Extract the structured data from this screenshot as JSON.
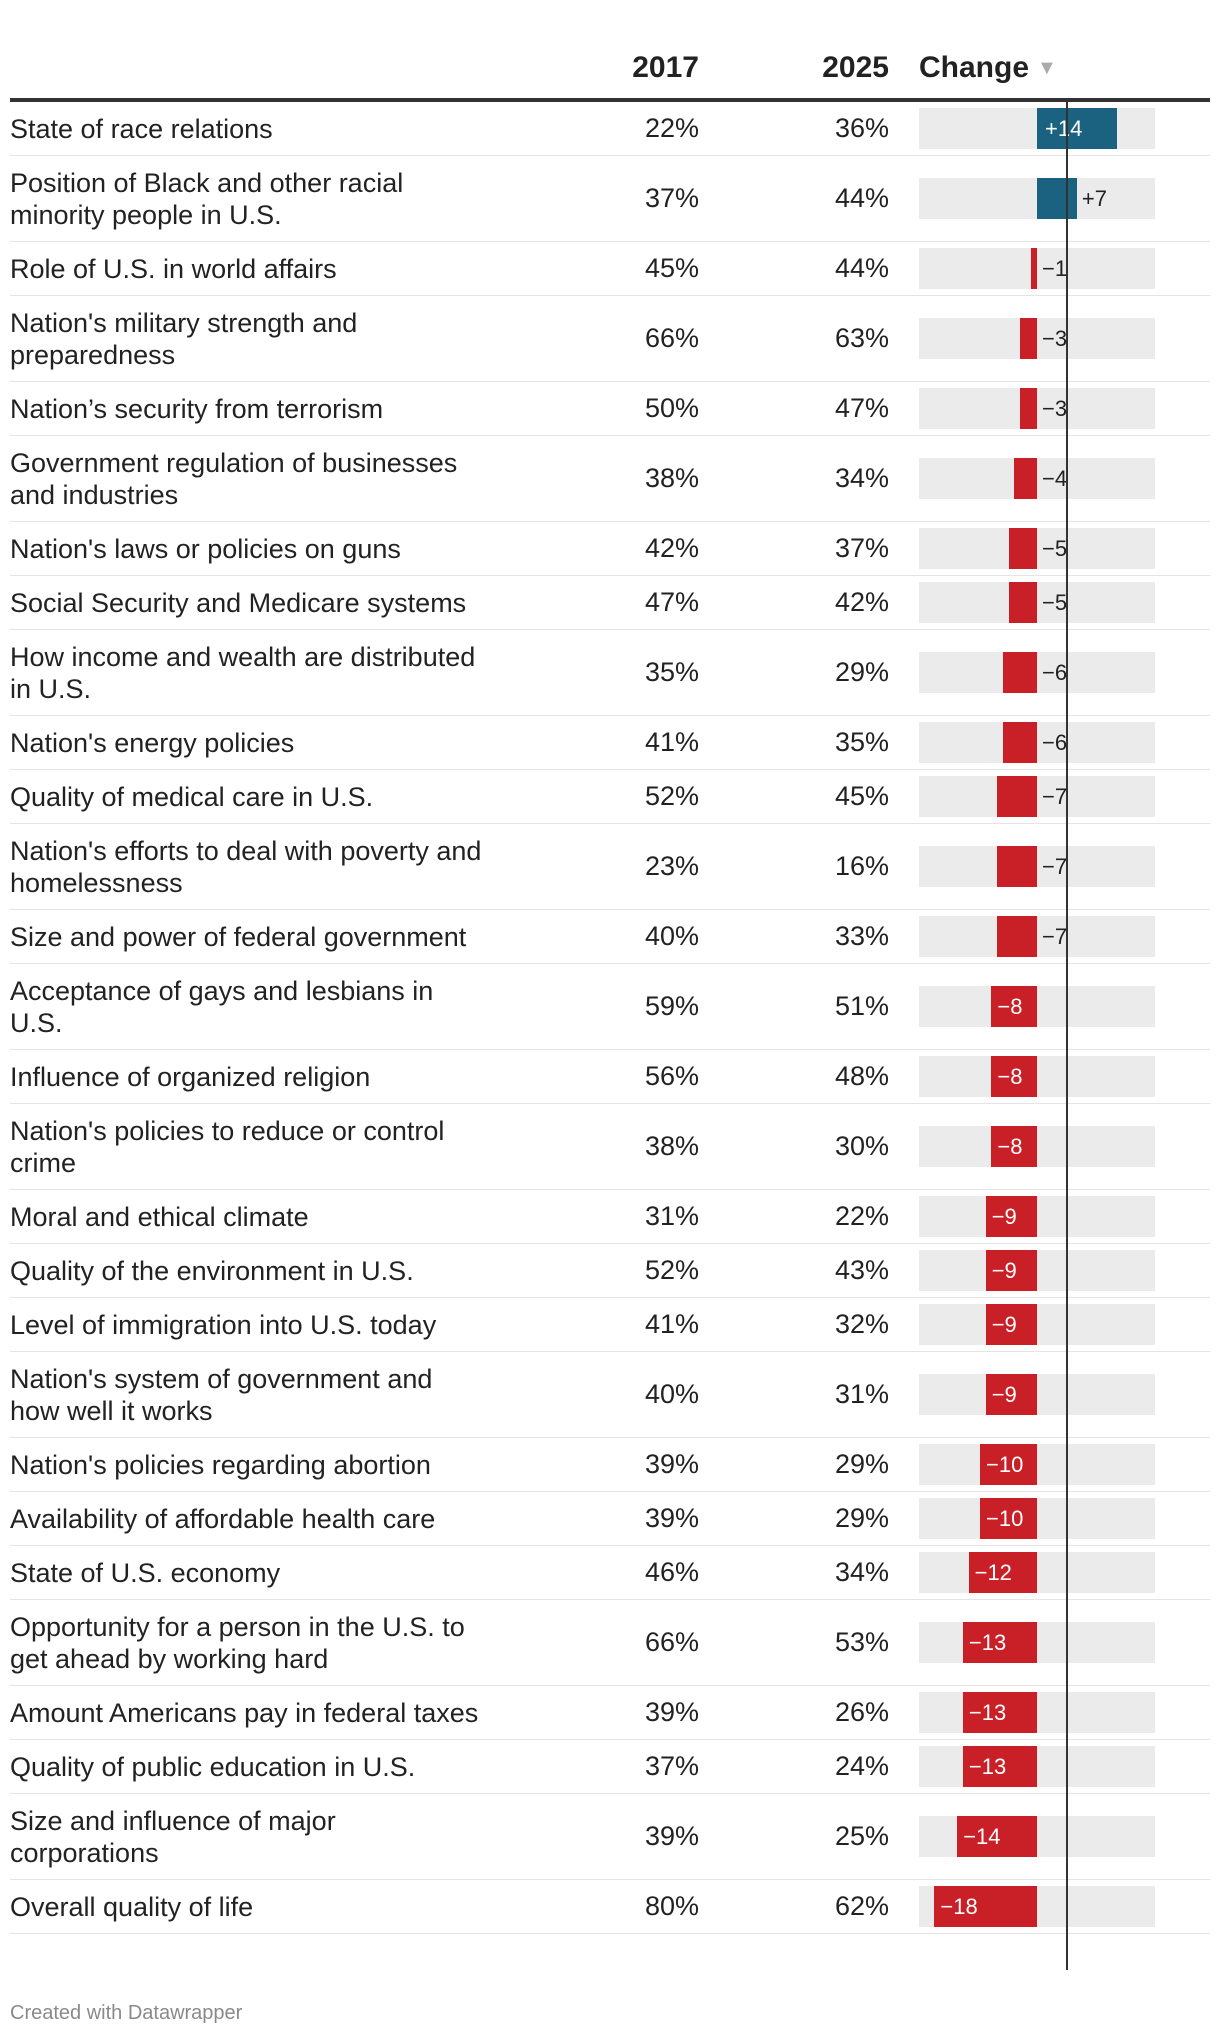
{
  "chart_data": {
    "type": "table",
    "columns": [
      "",
      "2017",
      "2025",
      "Change"
    ],
    "change_axis_range": [
      -22,
      22
    ],
    "colors": {
      "positive": "#1b6280",
      "negative": "#c91f26",
      "track": "#ebebeb"
    },
    "rows": [
      {
        "label": "State of race relations",
        "y2017": "22%",
        "y2025": "36%",
        "change": 14,
        "change_label": "+14"
      },
      {
        "label": "Position of Black and other racial minority people in U.S.",
        "y2017": "37%",
        "y2025": "44%",
        "change": 7,
        "change_label": "+7"
      },
      {
        "label": "Role of U.S. in world affairs",
        "y2017": "45%",
        "y2025": "44%",
        "change": -1,
        "change_label": "−1"
      },
      {
        "label": "Nation's military strength and preparedness",
        "y2017": "66%",
        "y2025": "63%",
        "change": -3,
        "change_label": "−3"
      },
      {
        "label": "Nation’s security from terrorism",
        "y2017": "50%",
        "y2025": "47%",
        "change": -3,
        "change_label": "−3"
      },
      {
        "label": "Government regulation of businesses and industries",
        "y2017": "38%",
        "y2025": "34%",
        "change": -4,
        "change_label": "−4"
      },
      {
        "label": "Nation's laws or policies on guns",
        "y2017": "42%",
        "y2025": "37%",
        "change": -5,
        "change_label": "−5"
      },
      {
        "label": "Social Security and Medicare systems",
        "y2017": "47%",
        "y2025": "42%",
        "change": -5,
        "change_label": "−5"
      },
      {
        "label": "How income and wealth are distributed in U.S.",
        "y2017": "35%",
        "y2025": "29%",
        "change": -6,
        "change_label": "−6"
      },
      {
        "label": "Nation's energy policies",
        "y2017": "41%",
        "y2025": "35%",
        "change": -6,
        "change_label": "−6"
      },
      {
        "label": "Quality of medical care in U.S.",
        "y2017": "52%",
        "y2025": "45%",
        "change": -7,
        "change_label": "−7"
      },
      {
        "label": "Nation's efforts to deal with poverty and homelessness",
        "y2017": "23%",
        "y2025": "16%",
        "change": -7,
        "change_label": "−7"
      },
      {
        "label": "Size and power of federal government",
        "y2017": "40%",
        "y2025": "33%",
        "change": -7,
        "change_label": "−7"
      },
      {
        "label": "Acceptance of gays and lesbians in U.S.",
        "y2017": "59%",
        "y2025": "51%",
        "change": -8,
        "change_label": "−8"
      },
      {
        "label": "Influence of organized religion",
        "y2017": "56%",
        "y2025": "48%",
        "change": -8,
        "change_label": "−8"
      },
      {
        "label": "Nation's policies to reduce or control crime",
        "y2017": "38%",
        "y2025": "30%",
        "change": -8,
        "change_label": "−8"
      },
      {
        "label": "Moral and ethical climate",
        "y2017": "31%",
        "y2025": "22%",
        "change": -9,
        "change_label": "−9"
      },
      {
        "label": "Quality of the environment in U.S.",
        "y2017": "52%",
        "y2025": "43%",
        "change": -9,
        "change_label": "−9"
      },
      {
        "label": "Level of immigration into U.S. today",
        "y2017": "41%",
        "y2025": "32%",
        "change": -9,
        "change_label": "−9"
      },
      {
        "label": "Nation's system of government and how well it works",
        "y2017": "40%",
        "y2025": "31%",
        "change": -9,
        "change_label": "−9"
      },
      {
        "label": "Nation's policies regarding abortion",
        "y2017": "39%",
        "y2025": "29%",
        "change": -10,
        "change_label": "−10"
      },
      {
        "label": "Availability of affordable health care",
        "y2017": "39%",
        "y2025": "29%",
        "change": -10,
        "change_label": "−10"
      },
      {
        "label": "State of U.S. economy",
        "y2017": "46%",
        "y2025": "34%",
        "change": -12,
        "change_label": "−12"
      },
      {
        "label": "Opportunity for a person in the U.S. to get ahead by working hard",
        "y2017": "66%",
        "y2025": "53%",
        "change": -13,
        "change_label": "−13"
      },
      {
        "label": "Amount Americans pay in federal taxes",
        "y2017": "39%",
        "y2025": "26%",
        "change": -13,
        "change_label": "−13"
      },
      {
        "label": "Quality of public education in U.S.",
        "y2017": "37%",
        "y2025": "24%",
        "change": -13,
        "change_label": "−13"
      },
      {
        "label": "Size and influence of major corporations",
        "y2017": "39%",
        "y2025": "25%",
        "change": -14,
        "change_label": "−14"
      },
      {
        "label": "Overall quality of life",
        "y2017": "80%",
        "y2025": "62%",
        "change": -18,
        "change_label": "−18"
      }
    ]
  },
  "footer": {
    "credit": "Created with Datawrapper"
  }
}
